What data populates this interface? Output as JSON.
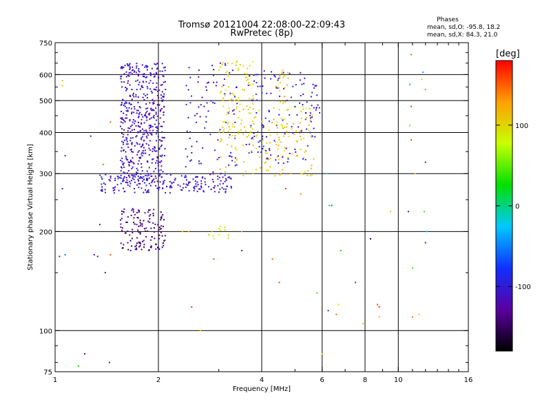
{
  "chart_data": {
    "type": "scatter",
    "title": "Tromsø 20121004 22:08:00-22:09:43",
    "subtitle": "RwPretec (8p)",
    "xlabel": "Frequency [MHz]",
    "ylabel": "Stationary phase Virtual Height [km]",
    "x_scale": "log",
    "y_scale": "log",
    "xlim": [
      1,
      16
    ],
    "ylim": [
      75,
      750
    ],
    "x_ticks": [
      1,
      2,
      4,
      6,
      8,
      10,
      16
    ],
    "y_ticks": [
      75,
      100,
      200,
      300,
      400,
      500,
      600,
      750
    ],
    "x_grid": [
      2,
      4,
      6,
      8,
      10
    ],
    "y_grid": [
      100,
      200,
      300,
      400,
      500,
      600
    ],
    "grid": true,
    "stats": {
      "heading": "Phases",
      "line1": "mean, sd,O: -95.8, 18.2",
      "line2": "mean, sd,X: 84.3, 21.0"
    },
    "colorbar": {
      "label": "[deg]",
      "min": -180,
      "max": 180,
      "ticks": [
        100,
        0,
        -100
      ],
      "colors": [
        "#000000",
        "#5a00a0",
        "#1030ff",
        "#00c8ff",
        "#00e000",
        "#c8ff00",
        "#ffa000",
        "#ff0000"
      ]
    },
    "clusters": [
      {
        "x": [
          1.55,
          2.1
        ],
        "y": [
          280,
          650
        ],
        "n": 520,
        "phase": -110
      },
      {
        "x": [
          1.55,
          2.1
        ],
        "y": [
          175,
          235
        ],
        "n": 140,
        "phase": -140
      },
      {
        "x": [
          1.35,
          3.3
        ],
        "y": [
          262,
          300
        ],
        "n": 200,
        "phase": -105
      },
      {
        "x": [
          2.4,
          3.4
        ],
        "y": [
          300,
          650
        ],
        "n": 90,
        "phase": -110
      },
      {
        "x": [
          3.0,
          3.8
        ],
        "y": [
          380,
          660
        ],
        "n": 90,
        "phase": 100
      },
      {
        "x": [
          3.0,
          5.7
        ],
        "y": [
          295,
          480
        ],
        "n": 130,
        "phase": 105
      },
      {
        "x": [
          3.6,
          5.5
        ],
        "y": [
          320,
          620
        ],
        "n": 110,
        "phase": -100
      },
      {
        "x": [
          4.4,
          4.8
        ],
        "y": [
          350,
          620
        ],
        "n": 40,
        "phase": 110
      },
      {
        "x": [
          5.5,
          5.9
        ],
        "y": [
          380,
          560
        ],
        "n": 25,
        "phase": -100
      },
      {
        "x": [
          2.8,
          3.2
        ],
        "y": [
          190,
          210
        ],
        "n": 12,
        "phase": 80
      }
    ],
    "points": [
      {
        "x": 1.05,
        "y": 575,
        "phase": 110
      },
      {
        "x": 1.05,
        "y": 555,
        "phase": 115
      },
      {
        "x": 1.07,
        "y": 340,
        "phase": -115
      },
      {
        "x": 1.05,
        "y": 270,
        "phase": -100
      },
      {
        "x": 1.03,
        "y": 168,
        "phase": -80
      },
      {
        "x": 1.07,
        "y": 170,
        "phase": -60
      },
      {
        "x": 1.17,
        "y": 78,
        "phase": 30
      },
      {
        "x": 1.22,
        "y": 85,
        "phase": -120
      },
      {
        "x": 1.27,
        "y": 390,
        "phase": -120
      },
      {
        "x": 1.35,
        "y": 210,
        "phase": -110
      },
      {
        "x": 1.4,
        "y": 150,
        "phase": -110
      },
      {
        "x": 1.38,
        "y": 320,
        "phase": 150
      },
      {
        "x": 1.44,
        "y": 80,
        "phase": -110
      },
      {
        "x": 1.45,
        "y": 430,
        "phase": 150
      },
      {
        "x": 1.45,
        "y": 170,
        "phase": 160
      },
      {
        "x": 1.3,
        "y": 170,
        "phase": -120
      },
      {
        "x": 1.33,
        "y": 168,
        "phase": -130
      },
      {
        "x": 2.35,
        "y": 200,
        "phase": 110
      },
      {
        "x": 2.45,
        "y": 200,
        "phase": 120
      },
      {
        "x": 2.5,
        "y": 118,
        "phase": 170
      },
      {
        "x": 2.65,
        "y": 100,
        "phase": 110
      },
      {
        "x": 2.9,
        "y": 165,
        "phase": 160
      },
      {
        "x": 3.2,
        "y": 195,
        "phase": 110
      },
      {
        "x": 3.5,
        "y": 200,
        "phase": 120
      },
      {
        "x": 3.5,
        "y": 175,
        "phase": -100
      },
      {
        "x": 4.3,
        "y": 165,
        "phase": 150
      },
      {
        "x": 4.5,
        "y": 140,
        "phase": 160
      },
      {
        "x": 4.7,
        "y": 270,
        "phase": 165
      },
      {
        "x": 5.2,
        "y": 260,
        "phase": 140
      },
      {
        "x": 5.8,
        "y": 130,
        "phase": 40
      },
      {
        "x": 6.0,
        "y": 85,
        "phase": 100
      },
      {
        "x": 6.2,
        "y": 300,
        "phase": -20
      },
      {
        "x": 6.3,
        "y": 240,
        "phase": 20
      },
      {
        "x": 6.25,
        "y": 115,
        "phase": -80
      },
      {
        "x": 6.4,
        "y": 240,
        "phase": -60
      },
      {
        "x": 6.6,
        "y": 112,
        "phase": 150
      },
      {
        "x": 6.7,
        "y": 120,
        "phase": 90
      },
      {
        "x": 6.8,
        "y": 175,
        "phase": 30
      },
      {
        "x": 7.5,
        "y": 140,
        "phase": -70
      },
      {
        "x": 7.9,
        "y": 105,
        "phase": 110
      },
      {
        "x": 8.3,
        "y": 190,
        "phase": -150
      },
      {
        "x": 8.8,
        "y": 118,
        "phase": 170
      },
      {
        "x": 8.7,
        "y": 120,
        "phase": 160
      },
      {
        "x": 8.8,
        "y": 110,
        "phase": 120
      },
      {
        "x": 9.5,
        "y": 230,
        "phase": 110
      },
      {
        "x": 10.9,
        "y": 690,
        "phase": 150
      },
      {
        "x": 10.8,
        "y": 560,
        "phase": 20
      },
      {
        "x": 10.9,
        "y": 480,
        "phase": 160
      },
      {
        "x": 10.8,
        "y": 420,
        "phase": 50
      },
      {
        "x": 10.9,
        "y": 380,
        "phase": 160
      },
      {
        "x": 10.7,
        "y": 230,
        "phase": -110
      },
      {
        "x": 11.0,
        "y": 110,
        "phase": 150
      },
      {
        "x": 11.2,
        "y": 300,
        "phase": 110
      },
      {
        "x": 11.0,
        "y": 155,
        "phase": 40
      },
      {
        "x": 11.5,
        "y": 112,
        "phase": 110
      },
      {
        "x": 11.7,
        "y": 580,
        "phase": 100
      },
      {
        "x": 11.8,
        "y": 610,
        "phase": -40
      },
      {
        "x": 12.0,
        "y": 540,
        "phase": 40
      },
      {
        "x": 12.0,
        "y": 325,
        "phase": -100
      },
      {
        "x": 12.0,
        "y": 185,
        "phase": -100
      },
      {
        "x": 11.9,
        "y": 230,
        "phase": 40
      },
      {
        "x": 12.1,
        "y": 200,
        "phase": -20
      }
    ]
  }
}
